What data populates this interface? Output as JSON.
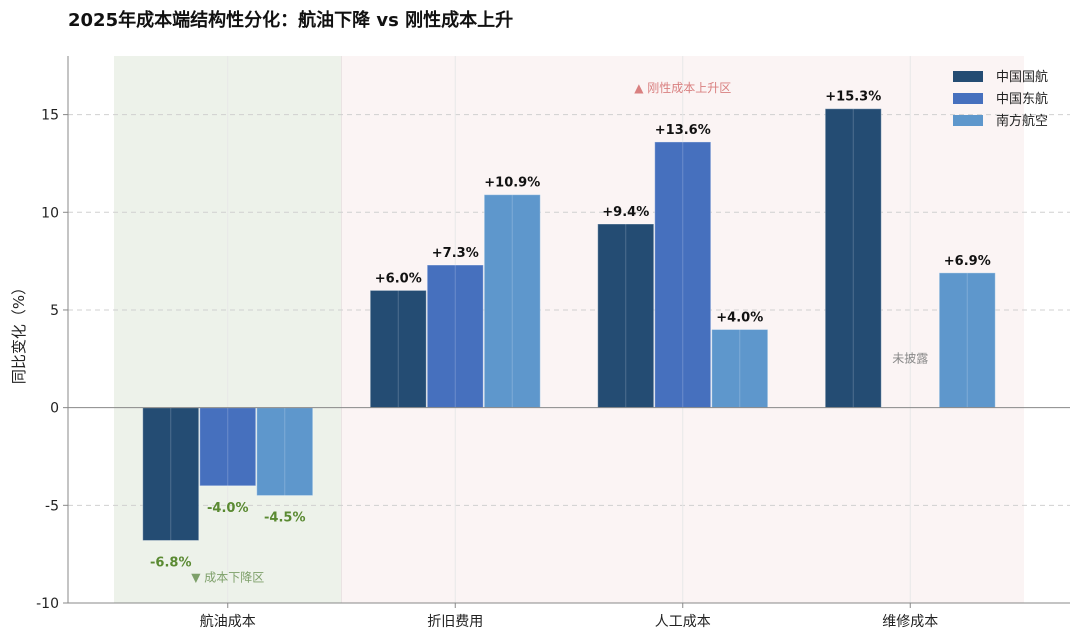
{
  "chart_data": {
    "type": "bar",
    "title": "2025年成本端结构性分化：航油下降 vs 刚性成本上升",
    "ylabel": "同比变化（%）",
    "ylim": [
      -10,
      18
    ],
    "yticks": [
      -10,
      -5,
      0,
      5,
      10,
      15
    ],
    "grid": "horizontal-dashed",
    "legend_position": "top-right",
    "categories": [
      "航油成本",
      "折旧费用",
      "人工成本",
      "维修成本"
    ],
    "series": [
      {
        "name": "中国国航",
        "color": "#244c73",
        "values": [
          -6.8,
          6.0,
          9.4,
          15.3
        ],
        "labels": [
          "-6.8%",
          "+6.0%",
          "+9.4%",
          "+15.3%"
        ]
      },
      {
        "name": "中国东航",
        "color": "#4670be",
        "values": [
          -4.0,
          7.3,
          13.6,
          null
        ],
        "labels": [
          "-4.0%",
          "+7.3%",
          "+13.6%",
          "未披露"
        ]
      },
      {
        "name": "南方航空",
        "color": "#5e97cc",
        "values": [
          -4.5,
          10.9,
          4.0,
          6.9
        ],
        "labels": [
          "-4.5%",
          "+10.9%",
          "+4.0%",
          "+6.9%"
        ]
      }
    ],
    "annotations": {
      "decline_zone": "▼ 成本下降区",
      "rise_zone": "▲ 刚性成本上升区"
    },
    "colors": {
      "decline_bg": "#edf2ea",
      "rise_bg": "#fbf4f4",
      "negative_label": "#5a8a32",
      "positive_label": "#111111",
      "decline_text": "#7ea06a",
      "rise_text": "#d98080",
      "missing_text": "#888888"
    }
  }
}
